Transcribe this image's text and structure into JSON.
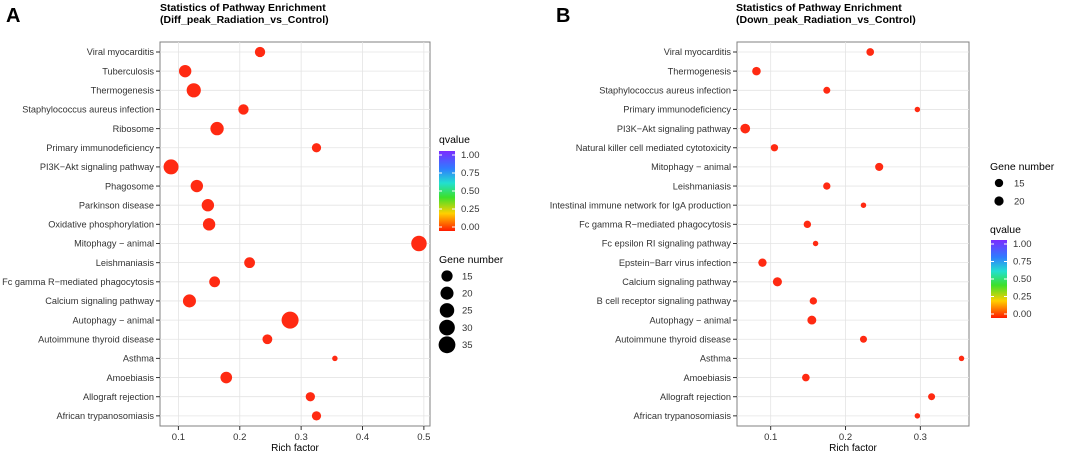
{
  "colors": {
    "point": "#ff2a12",
    "panel_bg": "#ffffff",
    "grid": "#e4e4e4",
    "border": "#808080",
    "text": "#333333"
  },
  "chart_data": [
    {
      "type": "scatter",
      "panel_letter": "A",
      "title": "Statistics of Pathway Enrichment",
      "subtitle": "(Diff_peak_Radiation_vs_Control)",
      "xlabel": "Rich factor",
      "ylabel": "",
      "xlim": [
        0.07,
        0.51
      ],
      "xticks": [
        0.1,
        0.2,
        0.3,
        0.4,
        0.5
      ],
      "xtick_labels": [
        "0.1",
        "0.2",
        "0.3",
        "0.4",
        "0.5"
      ],
      "size_range": [
        8,
        38
      ],
      "categories": [
        "Viral myocarditis",
        "Tuberculosis",
        "Thermogenesis",
        "Staphylococcus aureus infection",
        "Ribosome",
        "Primary immunodeficiency",
        "PI3K−Akt signaling pathway",
        "Phagosome",
        "Parkinson disease",
        "Oxidative phosphorylation",
        "Mitophagy − animal",
        "Leishmaniasis",
        "Fc gamma R−mediated phagocytosis",
        "Calcium signaling pathway",
        "Autophagy − animal",
        "Autoimmune thyroid disease",
        "Asthma",
        "Amoebiasis",
        "Allograft rejection",
        "African trypanosomiasis"
      ],
      "rich_factor": [
        0.233,
        0.111,
        0.125,
        0.206,
        0.163,
        0.325,
        0.088,
        0.13,
        0.148,
        0.15,
        0.492,
        0.216,
        0.159,
        0.118,
        0.282,
        0.245,
        0.355,
        0.178,
        0.315,
        0.325
      ],
      "gene_number": [
        13,
        18,
        24,
        13,
        21,
        11,
        27,
        18,
        18,
        18,
        29,
        14,
        14,
        20,
        36,
        12,
        8,
        16,
        11,
        11
      ],
      "qvalue": [
        0,
        0,
        0,
        0,
        0,
        0,
        0,
        0,
        0,
        0,
        0,
        0,
        0,
        0,
        0,
        0,
        0,
        0,
        0,
        0
      ],
      "legend_qvalue": {
        "title": "qvalue",
        "ticks": [
          "1.00",
          "0.75",
          "0.50",
          "0.25",
          "0.00"
        ],
        "placement": "right-upper"
      },
      "legend_size": {
        "title": "Gene number",
        "values": [
          15,
          20,
          25,
          30,
          35
        ],
        "labels": [
          "15",
          "20",
          "25",
          "30",
          "35"
        ],
        "placement": "right-lower"
      }
    },
    {
      "type": "scatter",
      "panel_letter": "B",
      "title": "Statistics of Pathway Enrichment",
      "subtitle": "(Down_peak_Radiation_vs_Control)",
      "xlabel": "Rich factor",
      "ylabel": "",
      "xlim": [
        0.055,
        0.365
      ],
      "xticks": [
        0.1,
        0.2,
        0.3
      ],
      "xtick_labels": [
        "0.1",
        "0.2",
        "0.3"
      ],
      "size_range": [
        8,
        23
      ],
      "categories": [
        "Viral myocarditis",
        "Thermogenesis",
        "Staphylococcus aureus infection",
        "Primary immunodeficiency",
        "PI3K−Akt signaling pathway",
        "Natural killer cell mediated cytotoxicity",
        "Mitophagy − animal",
        "Leishmaniasis",
        "Intestinal immune network for IgA production",
        "Fc gamma R−mediated phagocytosis",
        "Fc epsilon RI signaling pathway",
        "Epstein−Barr virus infection",
        "Calcium signaling pathway",
        "B cell receptor signaling pathway",
        "Autophagy − animal",
        "Autoimmune thyroid disease",
        "Asthma",
        "Amoebiasis",
        "Allograft rejection",
        "African trypanosomiasis"
      ],
      "rich_factor": [
        0.233,
        0.081,
        0.175,
        0.296,
        0.066,
        0.105,
        0.245,
        0.175,
        0.224,
        0.149,
        0.16,
        0.089,
        0.109,
        0.157,
        0.155,
        0.224,
        0.355,
        0.147,
        0.315,
        0.296
      ],
      "gene_number": [
        12,
        16,
        10,
        8,
        23,
        11,
        14,
        11,
        8,
        11,
        8,
        15,
        19,
        11,
        18,
        10,
        8,
        12,
        10,
        8
      ],
      "qvalue": [
        0,
        0,
        0,
        0,
        0,
        0,
        0,
        0,
        0,
        0,
        0,
        0,
        0,
        0,
        0,
        0,
        0,
        0,
        0,
        0
      ],
      "legend_size": {
        "title": "Gene number",
        "values": [
          15,
          20
        ],
        "labels": [
          "15",
          "20"
        ],
        "placement": "right-upper"
      },
      "legend_qvalue": {
        "title": "qvalue",
        "ticks": [
          "1.00",
          "0.75",
          "0.50",
          "0.25",
          "0.00"
        ],
        "placement": "right-lower"
      }
    }
  ]
}
